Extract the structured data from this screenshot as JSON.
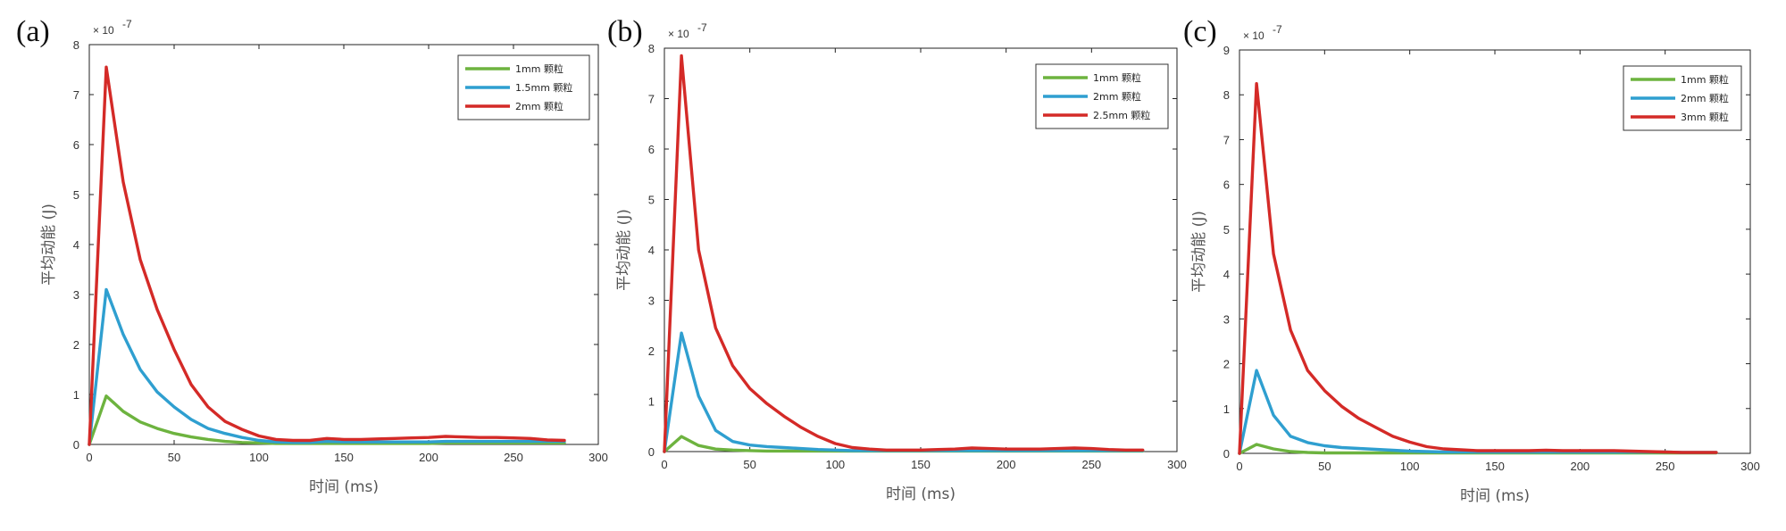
{
  "chart_data": [
    {
      "type": "line",
      "panel_label": "(a)",
      "exponent_label": "× 10",
      "exponent_power": "-7",
      "xlabel": "时间 (ms)",
      "ylabel": "平均动能 (J)",
      "xlim": [
        0,
        300
      ],
      "ylim": [
        0,
        8
      ],
      "xticks": [
        0,
        50,
        100,
        150,
        200,
        250,
        300
      ],
      "yticks": [
        0,
        1,
        2,
        3,
        4,
        5,
        6,
        7,
        8
      ],
      "legend_position": "top-right",
      "x": [
        0,
        10,
        20,
        30,
        40,
        50,
        60,
        70,
        80,
        90,
        100,
        110,
        120,
        130,
        140,
        150,
        160,
        170,
        180,
        190,
        200,
        210,
        220,
        230,
        240,
        250,
        260,
        270,
        280
      ],
      "series": [
        {
          "name": "1mm  颗粒",
          "color": "#6db33f",
          "values": [
            0,
            0.97,
            0.66,
            0.45,
            0.32,
            0.22,
            0.15,
            0.1,
            0.06,
            0.04,
            0.03,
            0.02,
            0.02,
            0.02,
            0.02,
            0.02,
            0.02,
            0.02,
            0.02,
            0.02,
            0.02,
            0.03,
            0.03,
            0.03,
            0.03,
            0.03,
            0.03,
            0.03,
            0.03
          ]
        },
        {
          "name": "1.5mm  颗粒",
          "color": "#2f9fd0",
          "values": [
            0,
            3.1,
            2.2,
            1.5,
            1.05,
            0.75,
            0.5,
            0.32,
            0.22,
            0.14,
            0.08,
            0.05,
            0.04,
            0.04,
            0.06,
            0.05,
            0.05,
            0.05,
            0.05,
            0.05,
            0.05,
            0.06,
            0.06,
            0.06,
            0.06,
            0.06,
            0.06,
            0.06,
            0.06
          ]
        },
        {
          "name": "2mm  颗粒",
          "color": "#d42a27",
          "values": [
            0,
            7.55,
            5.25,
            3.7,
            2.7,
            1.9,
            1.2,
            0.75,
            0.46,
            0.3,
            0.17,
            0.1,
            0.08,
            0.08,
            0.12,
            0.1,
            0.1,
            0.11,
            0.12,
            0.13,
            0.14,
            0.16,
            0.15,
            0.14,
            0.14,
            0.13,
            0.12,
            0.09,
            0.08
          ]
        }
      ]
    },
    {
      "type": "line",
      "panel_label": "(b)",
      "exponent_label": "× 10",
      "exponent_power": "-7",
      "xlabel": "时间 (ms)",
      "ylabel": "平均动能 (J)",
      "xlim": [
        0,
        300
      ],
      "ylim": [
        0,
        8
      ],
      "xticks": [
        0,
        50,
        100,
        150,
        200,
        250,
        300
      ],
      "yticks": [
        0,
        1,
        2,
        3,
        4,
        5,
        6,
        7,
        8
      ],
      "legend_position": "top-right",
      "x": [
        0,
        10,
        20,
        30,
        40,
        50,
        60,
        70,
        80,
        90,
        100,
        110,
        120,
        130,
        140,
        150,
        160,
        170,
        180,
        190,
        200,
        210,
        220,
        230,
        240,
        250,
        260,
        270,
        280
      ],
      "series": [
        {
          "name": "1mm  颗粒",
          "color": "#6db33f",
          "values": [
            0,
            0.3,
            0.12,
            0.05,
            0.03,
            0.02,
            0.01,
            0.01,
            0.01,
            0.01,
            0.01,
            0.01,
            0.01,
            0.01,
            0.01,
            0.01,
            0.01,
            0.01,
            0.01,
            0.01,
            0.01,
            0.01,
            0.01,
            0.01,
            0.01,
            0.01,
            0.01,
            0.01,
            0.01
          ]
        },
        {
          "name": "2mm  颗粒",
          "color": "#2f9fd0",
          "values": [
            0,
            2.35,
            1.1,
            0.42,
            0.2,
            0.13,
            0.1,
            0.08,
            0.06,
            0.04,
            0.03,
            0.02,
            0.02,
            0.02,
            0.02,
            0.02,
            0.02,
            0.02,
            0.02,
            0.02,
            0.02,
            0.02,
            0.02,
            0.02,
            0.02,
            0.02,
            0.02,
            0.02,
            0.02
          ]
        },
        {
          "name": "2.5mm  颗粒",
          "color": "#d42a27",
          "values": [
            0,
            7.85,
            4.0,
            2.45,
            1.7,
            1.25,
            0.95,
            0.7,
            0.48,
            0.3,
            0.16,
            0.08,
            0.05,
            0.03,
            0.03,
            0.03,
            0.04,
            0.05,
            0.07,
            0.06,
            0.05,
            0.05,
            0.05,
            0.06,
            0.07,
            0.06,
            0.04,
            0.03,
            0.03
          ]
        }
      ]
    },
    {
      "type": "line",
      "panel_label": "(c)",
      "exponent_label": "× 10",
      "exponent_power": "-7",
      "xlabel": "时间 (ms)",
      "ylabel": "平均动能 (J)",
      "xlim": [
        0,
        300
      ],
      "ylim": [
        0,
        9
      ],
      "xticks": [
        0,
        50,
        100,
        150,
        200,
        250,
        300
      ],
      "yticks": [
        0,
        1,
        2,
        3,
        4,
        5,
        6,
        7,
        8,
        9
      ],
      "legend_position": "top-right",
      "x": [
        0,
        10,
        20,
        30,
        40,
        50,
        60,
        70,
        80,
        90,
        100,
        110,
        120,
        130,
        140,
        150,
        160,
        170,
        180,
        190,
        200,
        210,
        220,
        230,
        240,
        250,
        260,
        270,
        280
      ],
      "series": [
        {
          "name": "1mm  颗粒",
          "color": "#6db33f",
          "values": [
            0,
            0.2,
            0.1,
            0.04,
            0.02,
            0.01,
            0.01,
            0.01,
            0.01,
            0.01,
            0.01,
            0.01,
            0.01,
            0.01,
            0.01,
            0.01,
            0.01,
            0.01,
            0.01,
            0.01,
            0.01,
            0.01,
            0.01,
            0.01,
            0.01,
            0.01,
            0.01,
            0.01,
            0.01
          ]
        },
        {
          "name": "2mm  颗粒",
          "color": "#2f9fd0",
          "values": [
            0,
            1.85,
            0.85,
            0.38,
            0.24,
            0.17,
            0.13,
            0.11,
            0.09,
            0.07,
            0.05,
            0.04,
            0.03,
            0.03,
            0.03,
            0.03,
            0.03,
            0.03,
            0.03,
            0.03,
            0.03,
            0.03,
            0.03,
            0.03,
            0.03,
            0.03,
            0.02,
            0.02,
            0.02
          ]
        },
        {
          "name": "3mm  颗粒",
          "color": "#d42a27",
          "values": [
            0,
            8.25,
            4.45,
            2.75,
            1.85,
            1.4,
            1.05,
            0.78,
            0.58,
            0.38,
            0.25,
            0.15,
            0.1,
            0.08,
            0.06,
            0.06,
            0.06,
            0.06,
            0.07,
            0.06,
            0.06,
            0.06,
            0.06,
            0.05,
            0.04,
            0.03,
            0.02,
            0.02,
            0.02
          ]
        }
      ]
    }
  ]
}
